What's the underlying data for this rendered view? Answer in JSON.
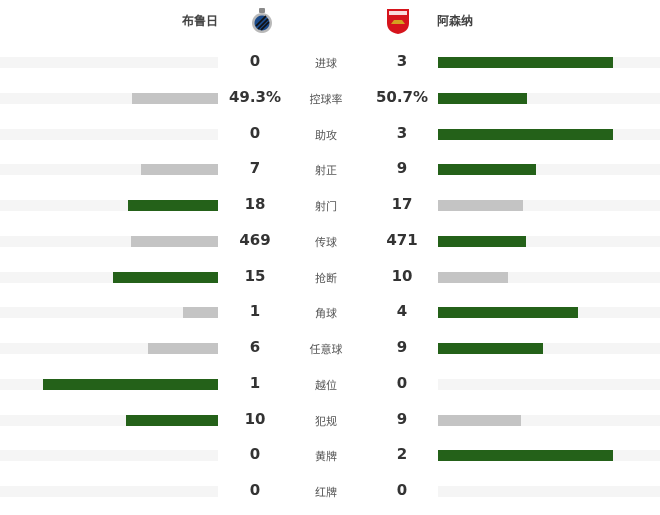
{
  "home": {
    "name": "布鲁日",
    "logo": "club-brugge-crest"
  },
  "away": {
    "name": "阿森纳",
    "logo": "arsenal-crest"
  },
  "colors": {
    "leader": "#246119",
    "trailer": "#c4c4c4",
    "track": "#f5f5f5"
  },
  "stats": [
    {
      "label": "进球",
      "home": "0",
      "away": "3",
      "home_value": 0,
      "away_value": 3
    },
    {
      "label": "控球率",
      "home": "49.3%",
      "away": "50.7%",
      "home_value": 49.3,
      "away_value": 50.7
    },
    {
      "label": "助攻",
      "home": "0",
      "away": "3",
      "home_value": 0,
      "away_value": 3
    },
    {
      "label": "射正",
      "home": "7",
      "away": "9",
      "home_value": 7,
      "away_value": 9
    },
    {
      "label": "射门",
      "home": "18",
      "away": "17",
      "home_value": 18,
      "away_value": 17
    },
    {
      "label": "传球",
      "home": "469",
      "away": "471",
      "home_value": 469,
      "away_value": 471
    },
    {
      "label": "抢断",
      "home": "15",
      "away": "10",
      "home_value": 15,
      "away_value": 10
    },
    {
      "label": "角球",
      "home": "1",
      "away": "4",
      "home_value": 1,
      "away_value": 4
    },
    {
      "label": "任意球",
      "home": "6",
      "away": "9",
      "home_value": 6,
      "away_value": 9
    },
    {
      "label": "越位",
      "home": "1",
      "away": "0",
      "home_value": 1,
      "away_value": 0
    },
    {
      "label": "犯规",
      "home": "10",
      "away": "9",
      "home_value": 10,
      "away_value": 9
    },
    {
      "label": "黄牌",
      "home": "0",
      "away": "2",
      "home_value": 0,
      "away_value": 2
    },
    {
      "label": "红牌",
      "home": "0",
      "away": "0",
      "home_value": 0,
      "away_value": 0
    }
  ]
}
